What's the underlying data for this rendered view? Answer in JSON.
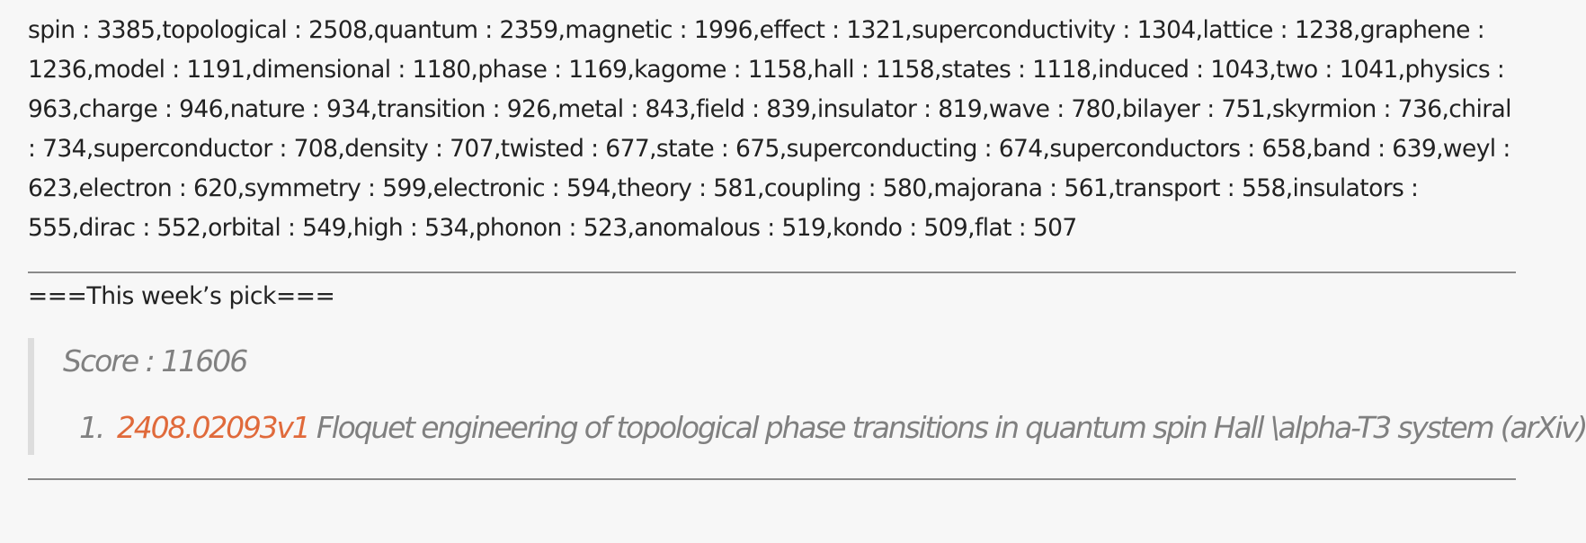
{
  "word_frequencies": "spin : 3385,topological : 2508,quantum : 2359,magnetic : 1996,effect : 1321,superconductivity : 1304,lattice : 1238,graphene : 1236,model : 1191,dimensional : 1180,phase : 1169,kagome : 1158,hall : 1158,states : 1118,induced : 1043,two : 1041,physics : 963,charge : 946,nature : 934,transition : 926,metal : 843,field : 839,insulator : 819,wave : 780,bilayer : 751,skyrmion : 736,chiral : 734,superconductor : 708,density : 707,twisted : 677,state : 675,superconducting : 674,superconductors : 658,band : 639,weyl : 623,electron : 620,symmetry : 599,electronic : 594,theory : 581,coupling : 580,majorana : 561,transport : 558,insulators : 555,dirac : 552,orbital : 549,high : 534,phonon : 523,anomalous : 519,kondo : 509,flat : 507",
  "weekly_pick": {
    "heading": "===This week’s pick===",
    "score": "Score : 11606",
    "items": [
      {
        "number": "1.",
        "id": "2408.02093v1",
        "title": " Floquet engineering of topological phase transitions in quantum spin Hall \\alpha-T3 system (arXiv)"
      }
    ]
  },
  "colors": {
    "link": "#e06a3b",
    "quote_text": "#808080",
    "quote_border": "#dddddd",
    "rule": "#8a8a8a"
  }
}
